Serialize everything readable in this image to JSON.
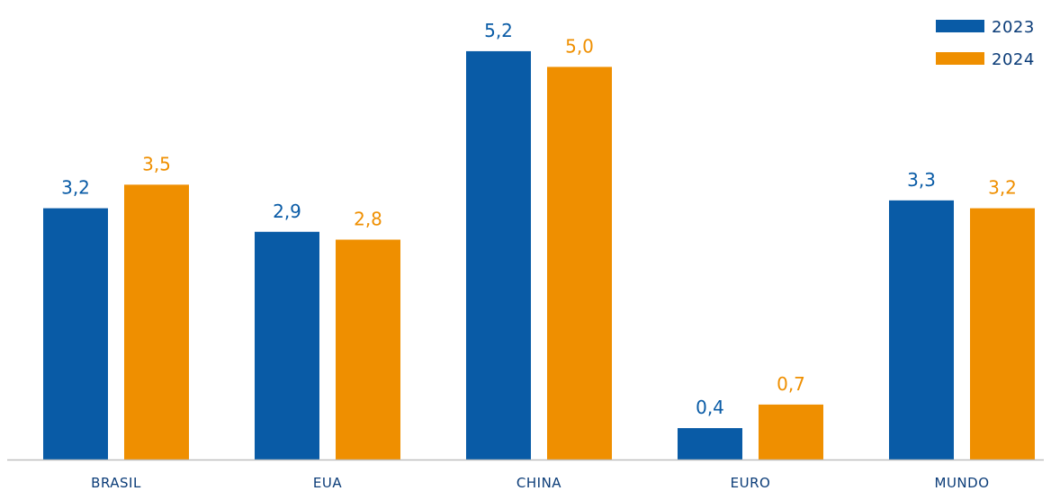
{
  "chart_data": {
    "type": "bar",
    "categories": [
      "BRASIL",
      "EUA",
      "CHINA",
      "EURO",
      "MUNDO"
    ],
    "series": [
      {
        "name": "2023",
        "color": "#095BA6",
        "values": [
          3.2,
          2.9,
          5.2,
          0.4,
          3.3
        ],
        "labels": [
          "3,2",
          "2,9",
          "5,2",
          "0,4",
          "3,3"
        ]
      },
      {
        "name": "2024",
        "color": "#EF8F00",
        "values": [
          3.5,
          2.8,
          5.0,
          0.7,
          3.2
        ],
        "labels": [
          "3,5",
          "2,8",
          "5,0",
          "0,7",
          "3,2"
        ]
      }
    ],
    "ylim": [
      0,
      5.6
    ],
    "grid": false,
    "legend": "top-right",
    "category_label_color": "#0B3C78",
    "axis_color": "#BFBFBF"
  }
}
